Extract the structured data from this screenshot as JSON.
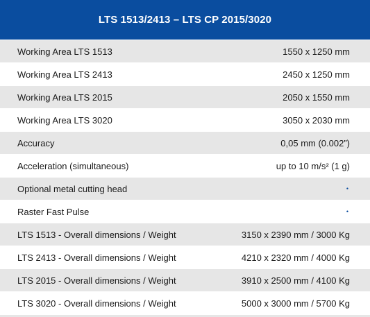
{
  "header": {
    "title": "LTS 1513/2413 – LTS CP 2015/3020"
  },
  "colors": {
    "header_bg": "#0a4d9f",
    "row_alt_bg": "#e6e6e6",
    "bullet": "#0a4d9f"
  },
  "rows": [
    {
      "label": "Working Area LTS 1513",
      "value": "1550 x 1250 mm"
    },
    {
      "label": "Working Area LTS 2413",
      "value": "2450 x 1250 mm"
    },
    {
      "label": "Working Area LTS 2015",
      "value": "2050 x 1550 mm"
    },
    {
      "label": "Working Area LTS 3020",
      "value": "3050 x 2030 mm"
    },
    {
      "label": "Accuracy",
      "value": "0,05 mm (0.002”)"
    },
    {
      "label": "Acceleration (simultaneous)",
      "value": "up to 10 m/s² (1 g)"
    },
    {
      "label": "Optional metal cutting head",
      "value": "•",
      "icon": "bullet-dot-icon"
    },
    {
      "label": "Raster Fast Pulse",
      "value": "•",
      "icon": "bullet-dot-icon"
    },
    {
      "label": "LTS 1513 - Overall dimensions / Weight",
      "value": "3150 x 2390 mm  / 3000 Kg"
    },
    {
      "label": "LTS 2413 - Overall dimensions / Weight",
      "value": "4210 x 2320 mm  / 4000 Kg"
    },
    {
      "label": "LTS 2015 - Overall dimensions / Weight",
      "value": "3910 x 2500 mm  / 4100 Kg"
    },
    {
      "label": "LTS 3020 - Overall dimensions / Weight",
      "value": "5000 x 3000 mm  / 5700 Kg"
    }
  ]
}
